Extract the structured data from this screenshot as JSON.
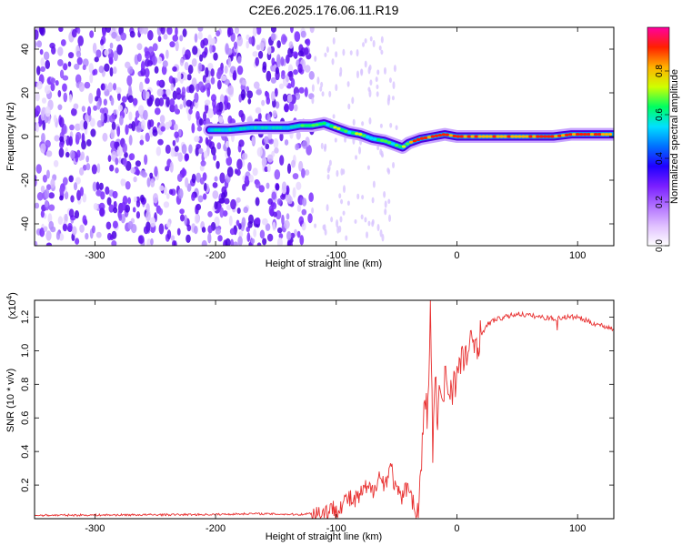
{
  "figure_title": "C2E6.2025.176.06.11.R19",
  "chart_data": [
    {
      "type": "heatmap",
      "title": "C2E6.2025.176.06.11.R19",
      "xlabel": "Height of straight line (km)",
      "ylabel": "Frequency (Hz)",
      "xlim": [
        -350,
        130
      ],
      "ylim": [
        -50,
        50
      ],
      "x_ticks": [
        -300,
        -200,
        -100,
        0,
        100
      ],
      "y_ticks": [
        -40,
        -20,
        0,
        20,
        40
      ],
      "colorbar": {
        "label": "Normalized spectral amplitude",
        "range": [
          0,
          1
        ],
        "ticks": [
          "0.0",
          "0.2",
          "0.4",
          "0.6",
          "0.8"
        ],
        "colors": [
          "#ffffff",
          "#e0c0ff",
          "#b070ff",
          "#7a1fff",
          "#2000ff",
          "#0070ff",
          "#00e0ff",
          "#00ff60",
          "#d0ff00",
          "#ffb000",
          "#ff2000",
          "#ff00a0"
        ]
      },
      "signal_trace": {
        "x": [
          -205,
          -190,
          -170,
          -150,
          -140,
          -130,
          -120,
          -110,
          -100,
          -90,
          -80,
          -70,
          -60,
          -50,
          -45,
          -40,
          -30,
          -20,
          -10,
          0,
          20,
          40,
          60,
          80,
          95,
          100,
          130
        ],
        "y": [
          3,
          3,
          4,
          4,
          4,
          5,
          5,
          6,
          4,
          2,
          1,
          -1,
          -2,
          -4,
          -5,
          -3,
          -1,
          0,
          1,
          0,
          0,
          0,
          0,
          0,
          1,
          1,
          1
        ]
      },
      "noise_region": {
        "x_range": [
          -350,
          -120
        ],
        "y_range": [
          -50,
          50
        ]
      }
    },
    {
      "type": "line",
      "xlabel": "Height of straight line (km)",
      "ylabel": "SNR (10 * v/v)",
      "y_multiplier": "(x10^4)",
      "multiplier_base": "(x10",
      "multiplier_exp": "4",
      "multiplier_close": ")",
      "xlim": [
        -350,
        130
      ],
      "ylim": [
        0,
        1.3
      ],
      "x_ticks": [
        -300,
        -200,
        -100,
        0,
        100
      ],
      "y_ticks": [
        "0.2",
        "0.4",
        "0.6",
        "0.8",
        "1.0",
        "1.2"
      ],
      "series": [
        {
          "color": "#e83030",
          "x": [
            -350,
            -200,
            -170,
            -130,
            -110,
            -100,
            -95,
            -90,
            -85,
            -80,
            -75,
            -70,
            -65,
            -60,
            -55,
            -50,
            -45,
            -40,
            -35,
            -32,
            -30,
            -28,
            -26,
            -24,
            -22,
            -20,
            -18,
            -16,
            -14,
            -12,
            -10,
            -8,
            -5,
            0,
            5,
            10,
            15,
            20,
            25,
            30,
            40,
            50,
            60,
            70,
            80,
            90,
            100,
            110,
            120,
            130
          ],
          "y": [
            0.02,
            0.025,
            0.03,
            0.025,
            0.04,
            0.06,
            0.09,
            0.12,
            0.1,
            0.14,
            0.18,
            0.16,
            0.26,
            0.2,
            0.32,
            0.15,
            0.12,
            0.22,
            0.05,
            0.02,
            0.25,
            0.55,
            0.7,
            0.62,
            1.3,
            0.4,
            0.85,
            0.55,
            0.8,
            0.6,
            0.88,
            0.78,
            0.78,
            0.85,
            0.95,
            1.0,
            1.05,
            1.1,
            1.15,
            1.18,
            1.2,
            1.22,
            1.21,
            1.2,
            1.19,
            1.2,
            1.2,
            1.17,
            1.15,
            1.13
          ]
        }
      ]
    }
  ]
}
